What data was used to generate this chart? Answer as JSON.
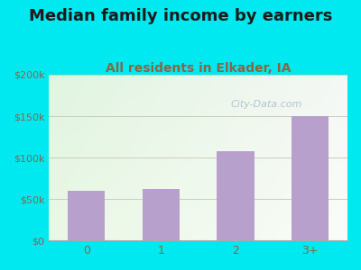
{
  "title": "Median family income by earners",
  "subtitle": "All residents in Elkader, IA",
  "categories": [
    "0",
    "1",
    "2",
    "3+"
  ],
  "values": [
    60000,
    62000,
    108000,
    150000
  ],
  "bar_color": "#b8a0cc",
  "ylim": [
    0,
    200000
  ],
  "yticks": [
    0,
    50000,
    100000,
    150000,
    200000
  ],
  "ytick_labels": [
    "$0",
    "$50k",
    "$100k",
    "$150k",
    "$200k"
  ],
  "background_outer": "#00e8f0",
  "bg_color_topleft": "#ddeedd",
  "bg_color_topright": "#f0f0f0",
  "bg_color_bottomleft": "#eef5ee",
  "bg_color_bottomright": "#f8f8f0",
  "title_fontsize": 13,
  "subtitle_fontsize": 10,
  "title_color": "#1a1a1a",
  "subtitle_color": "#886644",
  "tick_color": "#886644",
  "grid_color": "#ccccbb",
  "watermark_text": "City-Data.com",
  "watermark_color": "#aabbcc"
}
